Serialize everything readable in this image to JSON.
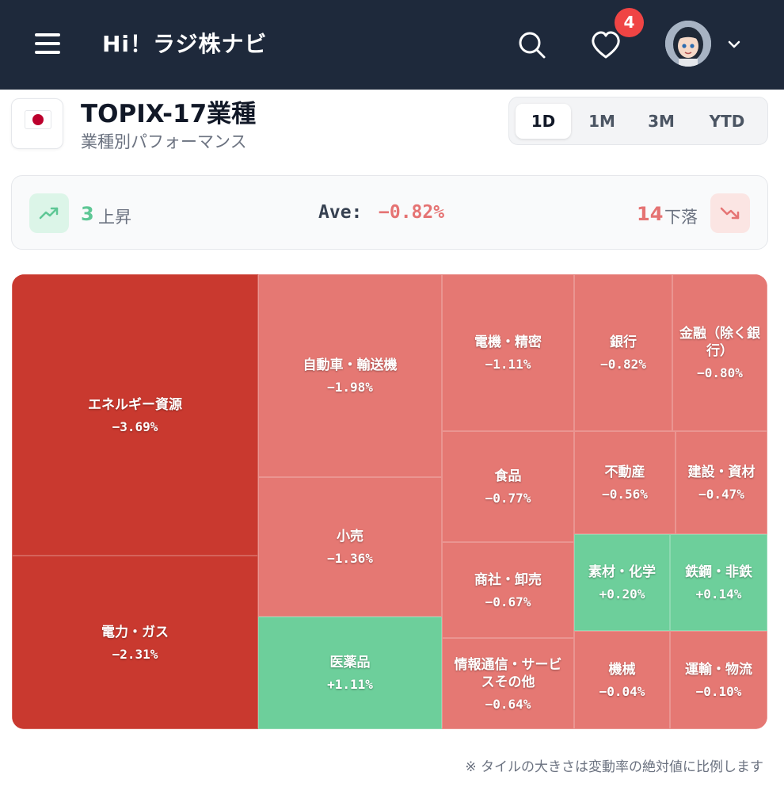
{
  "header": {
    "app_title": "Hi！ラジ株ナビ",
    "favorites_badge": "4"
  },
  "title_row": {
    "flag_icon": "japan-flag",
    "title": "TOPIX-17業種",
    "subtitle": "業種別パフォーマンス"
  },
  "range_tabs": [
    {
      "label": "1D",
      "active": true
    },
    {
      "label": "1M",
      "active": false
    },
    {
      "label": "3M",
      "active": false
    },
    {
      "label": "YTD",
      "active": false
    }
  ],
  "summary": {
    "up_count": "3",
    "up_label": "上昇",
    "ave_label": "Ave:",
    "ave_value": "−0.82%",
    "down_count": "14",
    "down_label": "下落",
    "up_color": "#5ec795",
    "down_color": "#e57373"
  },
  "colors": {
    "header_bg": "#1e293b",
    "strong_down": "#c9392f",
    "down": "#e57373",
    "up": "#6dcf9b"
  },
  "treemap": {
    "tiles": [
      {
        "name": "エネルギー資源",
        "pct": "−3.69%",
        "value": -3.69
      },
      {
        "name": "電力・ガス",
        "pct": "−2.31%",
        "value": -2.31
      },
      {
        "name": "自動車・輸送機",
        "pct": "−1.98%",
        "value": -1.98
      },
      {
        "name": "小売",
        "pct": "−1.36%",
        "value": -1.36
      },
      {
        "name": "医薬品",
        "pct": "+1.11%",
        "value": 1.11
      },
      {
        "name": "電機・精密",
        "pct": "−1.11%",
        "value": -1.11
      },
      {
        "name": "銀行",
        "pct": "−0.82%",
        "value": -0.82
      },
      {
        "name": "金融（除く銀行）",
        "pct": "−0.80%",
        "value": -0.8
      },
      {
        "name": "食品",
        "pct": "−0.77%",
        "value": -0.77
      },
      {
        "name": "不動産",
        "pct": "−0.56%",
        "value": -0.56
      },
      {
        "name": "建設・資材",
        "pct": "−0.47%",
        "value": -0.47
      },
      {
        "name": "商社・卸売",
        "pct": "−0.67%",
        "value": -0.67
      },
      {
        "name": "素材・化学",
        "pct": "+0.20%",
        "value": 0.2
      },
      {
        "name": "鉄鋼・非鉄",
        "pct": "+0.14%",
        "value": 0.14
      },
      {
        "name": "情報通信・サービスその他",
        "pct": "−0.64%",
        "value": -0.64
      },
      {
        "name": "機械",
        "pct": "−0.04%",
        "value": -0.04
      },
      {
        "name": "運輸・物流",
        "pct": "−0.10%",
        "value": -0.1
      }
    ]
  },
  "footnote": "※ タイルの大きさは変動率の絶対値に比例します"
}
